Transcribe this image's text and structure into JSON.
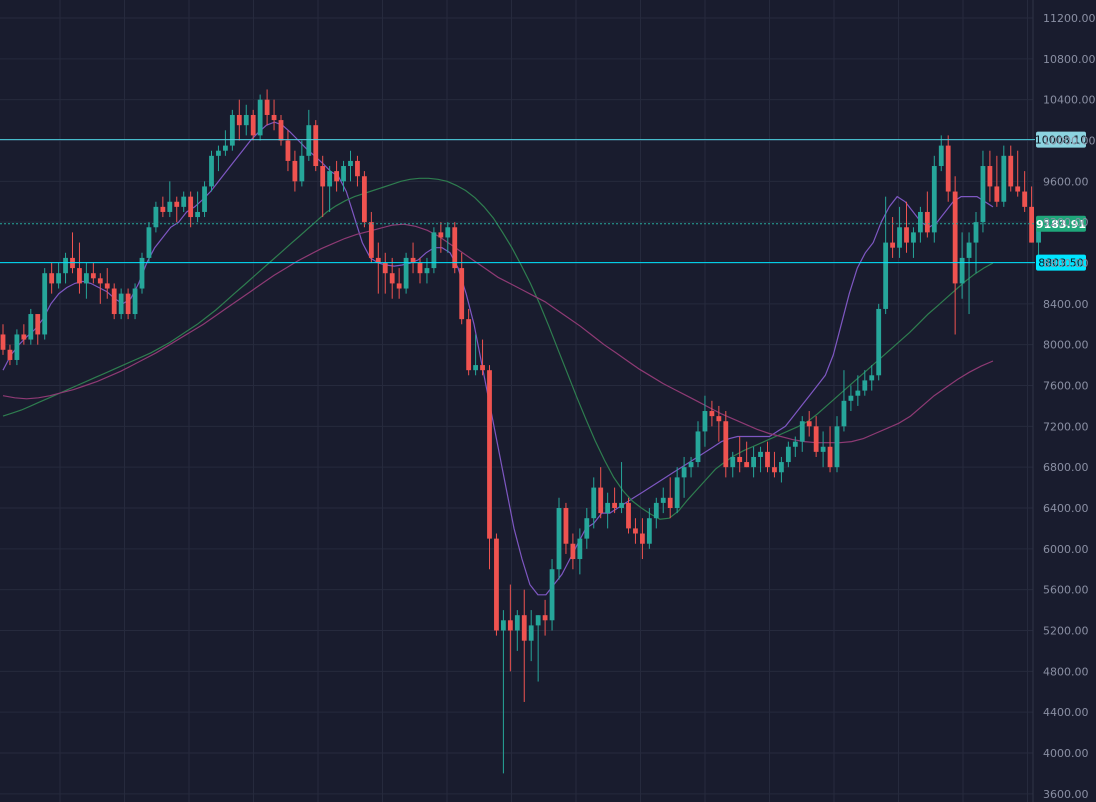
{
  "chart_data": {
    "type": "candlestick",
    "title": "",
    "ylim": [
      3600,
      11300
    ],
    "yticks": [
      "11200.00",
      "10800.00",
      "10400.00",
      "10000.00",
      "9600.00",
      "9200.00",
      "8800.00",
      "8400.00",
      "8000.00",
      "7600.00",
      "7200.00",
      "6800.00",
      "6400.00",
      "6000.00",
      "5600.00",
      "5200.00",
      "4800.00",
      "4400.00",
      "4000.00",
      "3600.00"
    ],
    "price_lines": [
      {
        "value": 10008.1,
        "label": "10008.10",
        "style": "solid",
        "color": "#4dd0e1",
        "tag_bg": "#8cd3e0",
        "tag_fg": "#0b1620"
      },
      {
        "value": 9183.91,
        "label": "9183.91",
        "style": "dotted",
        "color": "#26a69a",
        "tag_bg": "#1fa67a",
        "tag_fg": "#ffffff"
      },
      {
        "value": 8803.5,
        "label": "8803.50",
        "style": "solid",
        "color": "#00e5ff",
        "tag_bg": "#00e5ff",
        "tag_fg": "#0b1620"
      }
    ],
    "colors": {
      "up": "#26a69a",
      "down": "#ef5350",
      "background": "#191c2e",
      "grid": "#262a3d",
      "axis_text": "#8a8fa3"
    },
    "series": [
      {
        "name": "",
        "color": "#7e57c2",
        "values": [
          7750,
          7900,
          8000,
          8080,
          8150,
          8250,
          8400,
          8500,
          8560,
          8600,
          8620,
          8600,
          8560,
          8520,
          8450,
          8400,
          8450,
          8600,
          8800,
          8950,
          9050,
          9150,
          9200,
          9300,
          9350,
          9420,
          9500,
          9600,
          9700,
          9800,
          9900,
          10000,
          10080,
          10150,
          10180,
          10150,
          10080,
          10000,
          9920,
          9850,
          9780,
          9700,
          9650,
          9500,
          9250,
          9000,
          8850,
          8800,
          8780,
          8770,
          8780,
          8800,
          8830,
          8900,
          8950,
          8950,
          8900,
          8750,
          8500,
          8200,
          7800,
          7400,
          7000,
          6600,
          6200,
          5900,
          5650,
          5550,
          5550,
          5650,
          5750,
          5900,
          6050,
          6200,
          6250,
          6350,
          6350,
          6400,
          6450,
          6500,
          6550,
          6600,
          6650,
          6700,
          6750,
          6800,
          6850,
          6900,
          6950,
          7000,
          7050,
          7080,
          7100,
          7100,
          7100,
          7100,
          7100,
          7150,
          7200,
          7300,
          7400,
          7500,
          7600,
          7700,
          7900,
          8200,
          8500,
          8750,
          8900,
          9000,
          9200,
          9350,
          9450,
          9400,
          9300,
          9200,
          9150,
          9200,
          9300,
          9400,
          9450,
          9450,
          9450,
          9400,
          9350
        ]
      },
      {
        "name": "",
        "color": "#2e7d4f",
        "values": [
          7300,
          7330,
          7360,
          7400,
          7440,
          7480,
          7520,
          7560,
          7600,
          7640,
          7680,
          7720,
          7760,
          7800,
          7840,
          7880,
          7920,
          7970,
          8020,
          8080,
          8140,
          8200,
          8270,
          8340,
          8420,
          8500,
          8580,
          8660,
          8740,
          8820,
          8900,
          8980,
          9060,
          9140,
          9220,
          9300,
          9360,
          9410,
          9450,
          9480,
          9510,
          9540,
          9570,
          9600,
          9620,
          9630,
          9630,
          9620,
          9600,
          9560,
          9510,
          9440,
          9350,
          9240,
          9100,
          8950,
          8780,
          8600,
          8400,
          8180,
          7950,
          7720,
          7490,
          7270,
          7060,
          6870,
          6700,
          6570,
          6470,
          6400,
          6340,
          6290,
          6300,
          6370,
          6480,
          6580,
          6680,
          6780,
          6850,
          6910,
          6960,
          7000,
          7040,
          7080,
          7120,
          7160,
          7200,
          7250,
          7320,
          7400,
          7480,
          7560,
          7640,
          7720,
          7800,
          7880,
          7960,
          8040,
          8120,
          8210,
          8300,
          8380,
          8460,
          8540,
          8620,
          8690,
          8750,
          8800
        ]
      },
      {
        "name": "",
        "color": "#8e3a74",
        "values": [
          7500,
          7480,
          7470,
          7480,
          7500,
          7530,
          7560,
          7600,
          7640,
          7690,
          7740,
          7800,
          7860,
          7920,
          7990,
          8060,
          8130,
          8200,
          8280,
          8360,
          8440,
          8520,
          8600,
          8680,
          8750,
          8820,
          8880,
          8940,
          8990,
          9040,
          9080,
          9110,
          9140,
          9170,
          9180,
          9160,
          9120,
          9060,
          8980,
          8900,
          8820,
          8740,
          8660,
          8600,
          8540,
          8480,
          8420,
          8340,
          8260,
          8180,
          8090,
          8000,
          7920,
          7840,
          7760,
          7690,
          7620,
          7560,
          7500,
          7440,
          7380,
          7320,
          7270,
          7220,
          7170,
          7130,
          7100,
          7070,
          7050,
          7040,
          7040,
          7040,
          7050,
          7080,
          7130,
          7180,
          7230,
          7300,
          7400,
          7500,
          7580,
          7660,
          7730,
          7790,
          7840
        ]
      }
    ],
    "candles": [
      [
        8100,
        8200,
        7900,
        7950
      ],
      [
        7950,
        8000,
        7800,
        7850
      ],
      [
        7850,
        8150,
        7800,
        8100
      ],
      [
        8100,
        8200,
        8000,
        8050
      ],
      [
        8050,
        8350,
        8000,
        8300
      ],
      [
        8300,
        8250,
        8000,
        8100
      ],
      [
        8100,
        8750,
        8050,
        8700
      ],
      [
        8700,
        8800,
        8500,
        8600
      ],
      [
        8600,
        8800,
        8550,
        8700
      ],
      [
        8700,
        8900,
        8600,
        8850
      ],
      [
        8850,
        9100,
        8700,
        8750
      ],
      [
        8750,
        9000,
        8500,
        8600
      ],
      [
        8600,
        8800,
        8450,
        8700
      ],
      [
        8700,
        8800,
        8600,
        8650
      ],
      [
        8650,
        8700,
        8400,
        8600
      ],
      [
        8600,
        8750,
        8450,
        8550
      ],
      [
        8550,
        8600,
        8250,
        8300
      ],
      [
        8300,
        8550,
        8250,
        8500
      ],
      [
        8500,
        8550,
        8250,
        8300
      ],
      [
        8300,
        8600,
        8250,
        8550
      ],
      [
        8550,
        8900,
        8500,
        8850
      ],
      [
        8850,
        9200,
        8800,
        9150
      ],
      [
        9150,
        9400,
        9100,
        9350
      ],
      [
        9350,
        9450,
        9250,
        9300
      ],
      [
        9300,
        9600,
        9250,
        9400
      ],
      [
        9400,
        9450,
        9200,
        9350
      ],
      [
        9350,
        9500,
        9300,
        9450
      ],
      [
        9450,
        9500,
        9150,
        9250
      ],
      [
        9250,
        9500,
        9200,
        9300
      ],
      [
        9300,
        9600,
        9250,
        9550
      ],
      [
        9550,
        9900,
        9500,
        9850
      ],
      [
        9850,
        9950,
        9700,
        9900
      ],
      [
        9900,
        10100,
        9850,
        9950
      ],
      [
        9950,
        10300,
        9900,
        10250
      ],
      [
        10250,
        10400,
        10000,
        10150
      ],
      [
        10150,
        10350,
        10050,
        10250
      ],
      [
        10250,
        10300,
        10000,
        10050
      ],
      [
        10050,
        10450,
        10000,
        10400
      ],
      [
        10400,
        10500,
        10150,
        10250
      ],
      [
        10250,
        10400,
        10100,
        10200
      ],
      [
        10200,
        10250,
        9950,
        10000
      ],
      [
        10000,
        10100,
        9700,
        9800
      ],
      [
        9800,
        9900,
        9500,
        9600
      ],
      [
        9600,
        10000,
        9550,
        9850
      ],
      [
        9850,
        10300,
        9800,
        10150
      ],
      [
        10150,
        10200,
        9700,
        9750
      ],
      [
        9750,
        9850,
        9250,
        9550
      ],
      [
        9550,
        9750,
        9300,
        9700
      ],
      [
        9700,
        9800,
        9500,
        9600
      ],
      [
        9600,
        9800,
        9500,
        9750
      ],
      [
        9750,
        9900,
        9600,
        9800
      ],
      [
        9800,
        9850,
        9550,
        9650
      ],
      [
        9650,
        9700,
        9150,
        9200
      ],
      [
        9200,
        9300,
        8800,
        8850
      ],
      [
        8850,
        9000,
        8500,
        8800
      ],
      [
        8800,
        8900,
        8500,
        8700
      ],
      [
        8700,
        8850,
        8450,
        8600
      ],
      [
        8600,
        8750,
        8450,
        8550
      ],
      [
        8550,
        8900,
        8500,
        8850
      ],
      [
        8850,
        9000,
        8700,
        8800
      ],
      [
        8800,
        8850,
        8600,
        8700
      ],
      [
        8700,
        8850,
        8600,
        8750
      ],
      [
        8750,
        9150,
        8700,
        9100
      ],
      [
        9100,
        9200,
        8900,
        9050
      ],
      [
        9050,
        9200,
        8900,
        9150
      ],
      [
        9150,
        9200,
        8700,
        8750
      ],
      [
        8750,
        8900,
        8200,
        8250
      ],
      [
        8250,
        8350,
        7700,
        7750
      ],
      [
        7750,
        8100,
        7700,
        7800
      ],
      [
        7800,
        8050,
        7700,
        7750
      ],
      [
        7750,
        7800,
        5800,
        6100
      ],
      [
        6100,
        6150,
        5150,
        5200
      ],
      [
        5200,
        5400,
        3800,
        5300
      ],
      [
        5300,
        5650,
        4800,
        5200
      ],
      [
        5200,
        5400,
        5000,
        5350
      ],
      [
        5350,
        5600,
        4500,
        5100
      ],
      [
        5100,
        5400,
        4900,
        5250
      ],
      [
        5250,
        5350,
        4700,
        5350
      ],
      [
        5350,
        5500,
        5150,
        5300
      ],
      [
        5300,
        5900,
        5200,
        5800
      ],
      [
        5800,
        6500,
        5700,
        6400
      ],
      [
        6400,
        6450,
        5950,
        6050
      ],
      [
        6050,
        6150,
        5800,
        5900
      ],
      [
        5900,
        6200,
        5750,
        6100
      ],
      [
        6100,
        6400,
        6000,
        6300
      ],
      [
        6300,
        6700,
        6200,
        6600
      ],
      [
        6600,
        6800,
        6300,
        6350
      ],
      [
        6350,
        6550,
        6200,
        6450
      ],
      [
        6450,
        6600,
        6350,
        6400
      ],
      [
        6400,
        6850,
        6350,
        6450
      ],
      [
        6450,
        6500,
        6150,
        6200
      ],
      [
        6200,
        6300,
        6050,
        6150
      ],
      [
        6150,
        6300,
        5900,
        6050
      ],
      [
        6050,
        6400,
        6000,
        6300
      ],
      [
        6300,
        6500,
        6200,
        6450
      ],
      [
        6450,
        6600,
        6350,
        6500
      ],
      [
        6500,
        6700,
        6300,
        6400
      ],
      [
        6400,
        6800,
        6350,
        6700
      ],
      [
        6700,
        6900,
        6500,
        6800
      ],
      [
        6800,
        6900,
        6700,
        6850
      ],
      [
        6850,
        7250,
        6800,
        7150
      ],
      [
        7150,
        7500,
        7000,
        7350
      ],
      [
        7350,
        7450,
        7200,
        7300
      ],
      [
        7300,
        7400,
        7050,
        7250
      ],
      [
        7250,
        7350,
        6700,
        6800
      ],
      [
        6800,
        6950,
        6700,
        6900
      ],
      [
        6900,
        7100,
        6750,
        6850
      ],
      [
        6850,
        7050,
        6800,
        6800
      ],
      [
        6800,
        7000,
        6700,
        6900
      ],
      [
        6900,
        7000,
        6750,
        6950
      ],
      [
        6950,
        7050,
        6750,
        6800
      ],
      [
        6800,
        6950,
        6700,
        6750
      ],
      [
        6750,
        6900,
        6650,
        6850
      ],
      [
        6850,
        7050,
        6800,
        7000
      ],
      [
        7000,
        7100,
        6900,
        7050
      ],
      [
        7050,
        7300,
        6950,
        7250
      ],
      [
        7250,
        7350,
        7100,
        7200
      ],
      [
        7200,
        7300,
        6900,
        6950
      ],
      [
        6950,
        7150,
        6800,
        7000
      ],
      [
        7000,
        7200,
        6750,
        6800
      ],
      [
        6800,
        7300,
        6750,
        7200
      ],
      [
        7200,
        7750,
        7150,
        7450
      ],
      [
        7450,
        7600,
        7350,
        7500
      ],
      [
        7500,
        7700,
        7400,
        7550
      ],
      [
        7550,
        7750,
        7500,
        7650
      ],
      [
        7650,
        7800,
        7550,
        7700
      ],
      [
        7700,
        8400,
        7650,
        8350
      ],
      [
        8350,
        9450,
        8300,
        9000
      ],
      [
        9000,
        9250,
        8850,
        8950
      ],
      [
        8950,
        9350,
        8850,
        9150
      ],
      [
        9150,
        9400,
        8900,
        9000
      ],
      [
        9000,
        9150,
        8850,
        9100
      ],
      [
        9100,
        9350,
        9000,
        9300
      ],
      [
        9300,
        9500,
        9050,
        9100
      ],
      [
        9100,
        9850,
        9000,
        9750
      ],
      [
        9750,
        10050,
        9700,
        9950
      ],
      [
        9950,
        10050,
        9400,
        9500
      ],
      [
        9500,
        9650,
        8100,
        8600
      ],
      [
        8600,
        9100,
        8450,
        8850
      ],
      [
        8850,
        9100,
        8300,
        9000
      ],
      [
        9000,
        9300,
        8700,
        9200
      ],
      [
        9200,
        9900,
        9100,
        9750
      ],
      [
        9750,
        9900,
        9400,
        9550
      ],
      [
        9550,
        9850,
        9350,
        9400
      ],
      [
        9400,
        9950,
        9350,
        9850
      ],
      [
        9850,
        9950,
        9500,
        9550
      ],
      [
        9550,
        9900,
        9450,
        9500
      ],
      [
        9500,
        9700,
        9300,
        9350
      ],
      [
        9350,
        9550,
        9000,
        9000
      ],
      [
        9000,
        9250,
        8800,
        9150
      ]
    ]
  }
}
